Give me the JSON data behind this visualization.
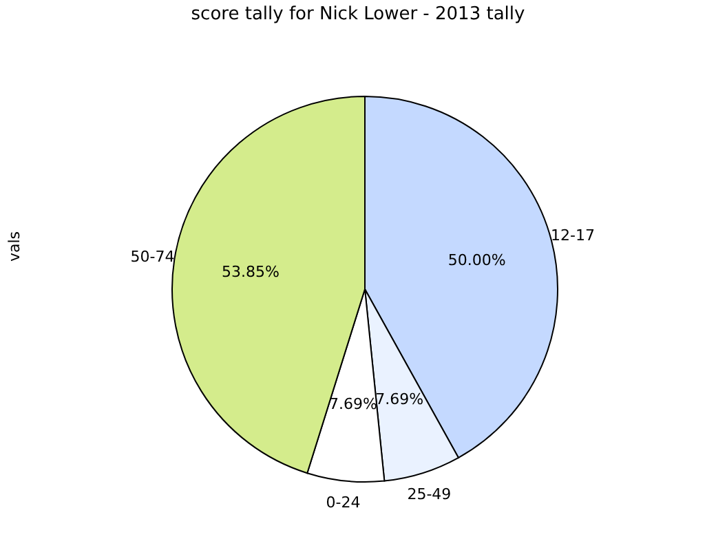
{
  "chart_data": {
    "type": "pie",
    "title": "score tally for Nick Lower - 2013 tally",
    "ylabel": "vals",
    "categories": [
      "12-17",
      "25-49",
      "0-24",
      "50-74"
    ],
    "values": [
      50.0,
      7.69,
      7.69,
      53.85
    ],
    "value_labels": [
      "50.00%",
      "7.69%",
      "7.69%",
      "53.85%"
    ],
    "colors": [
      "#c4d9ff",
      "#eaf2ff",
      "#ffffff",
      "#d4ec8c"
    ]
  }
}
